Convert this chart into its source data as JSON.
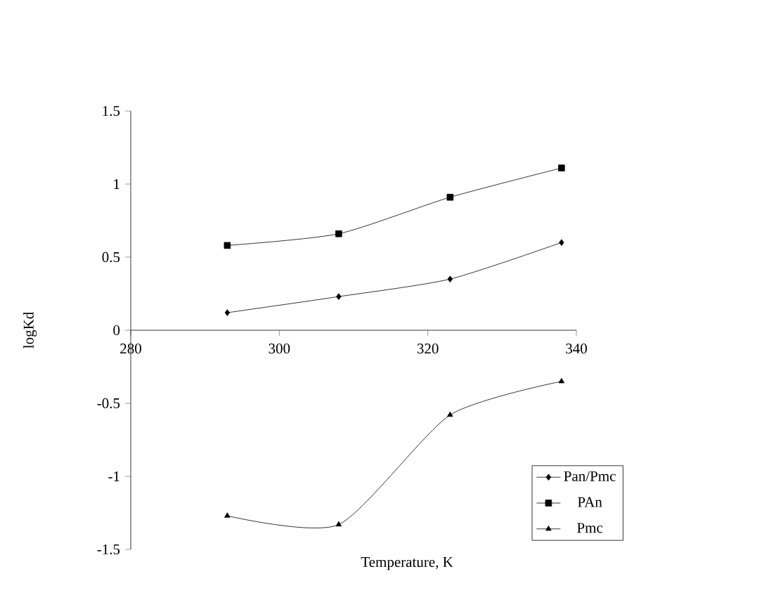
{
  "chart_data": {
    "type": "line",
    "xlabel": "Temperature, K",
    "ylabel": "logKd",
    "xlim": [
      280,
      340
    ],
    "ylim": [
      -1.5,
      1.5
    ],
    "xticks": [
      280,
      300,
      320,
      340
    ],
    "yticks": [
      -1.5,
      -1,
      -0.5,
      0,
      0.5,
      1,
      1.5
    ],
    "legend": "bottom right",
    "grid": false,
    "series": [
      {
        "name": "Pan/Pmc",
        "color": "#000000",
        "marker": "diamond",
        "x": [
          293,
          308,
          323,
          338
        ],
        "values": [
          0.12,
          0.23,
          0.35,
          0.6
        ]
      },
      {
        "name": "PAn",
        "color": "#000000",
        "marker": "square",
        "x": [
          293,
          308,
          323,
          338
        ],
        "values": [
          0.58,
          0.66,
          0.91,
          1.11
        ]
      },
      {
        "name": "Pmc",
        "color": "#000000",
        "marker": "triangle",
        "x": [
          293,
          308,
          323,
          338
        ],
        "values": [
          -1.27,
          -1.33,
          -0.58,
          -0.35
        ]
      }
    ]
  }
}
